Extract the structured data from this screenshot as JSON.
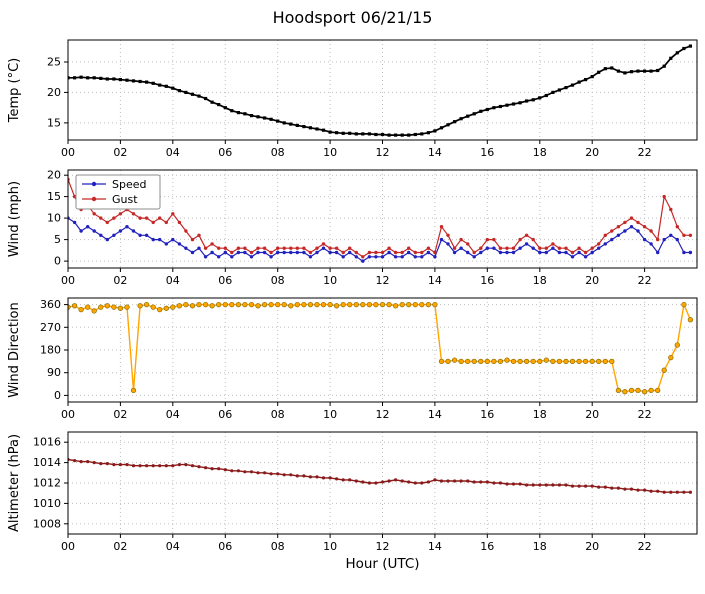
{
  "title": "Hoodsport 06/21/15",
  "xlabel": "Hour (UTC)",
  "chart_data": {
    "type": "line",
    "title": "Hoodsport 06/21/15",
    "x_label": "Hour (UTC)",
    "xlim": [
      0,
      24
    ],
    "x_ticks": {
      "values": [
        0,
        2,
        4,
        6,
        8,
        10,
        12,
        14,
        16,
        18,
        20,
        22
      ],
      "labels": [
        "00",
        "02",
        "04",
        "06",
        "08",
        "10",
        "12",
        "14",
        "16",
        "18",
        "20",
        "22"
      ]
    },
    "x_hours": [
      0,
      0.25,
      0.5,
      0.75,
      1,
      1.25,
      1.5,
      1.75,
      2,
      2.25,
      2.5,
      2.75,
      3,
      3.25,
      3.5,
      3.75,
      4,
      4.25,
      4.5,
      4.75,
      5,
      5.25,
      5.5,
      5.75,
      6,
      6.25,
      6.5,
      6.75,
      7,
      7.25,
      7.5,
      7.75,
      8,
      8.25,
      8.5,
      8.75,
      9,
      9.25,
      9.5,
      9.75,
      10,
      10.25,
      10.5,
      10.75,
      11,
      11.25,
      11.5,
      11.75,
      12,
      12.25,
      12.5,
      12.75,
      13,
      13.25,
      13.5,
      13.75,
      14,
      14.25,
      14.5,
      14.75,
      15,
      15.25,
      15.5,
      15.75,
      16,
      16.25,
      16.5,
      16.75,
      17,
      17.25,
      17.5,
      17.75,
      18,
      18.25,
      18.5,
      18.75,
      19,
      19.25,
      19.5,
      19.75,
      20,
      20.25,
      20.5,
      20.75,
      21,
      21.25,
      21.5,
      21.75,
      22,
      22.25,
      22.5,
      22.75,
      23,
      23.25,
      23.5,
      23.75
    ],
    "panels": [
      {
        "name": "temperature",
        "ylabel": "Temp (°C)",
        "yticks": [
          15,
          20,
          25
        ],
        "ylim": [
          12.2,
          28.6
        ],
        "grid": true,
        "series": [
          {
            "name": "Temp",
            "color": "#000000",
            "marker": "square",
            "marker_size": 1.6,
            "line_width": 1.7,
            "values": [
              22.4,
              22.4,
              22.5,
              22.4,
              22.4,
              22.3,
              22.2,
              22.2,
              22.1,
              22.0,
              21.9,
              21.8,
              21.7,
              21.5,
              21.2,
              21.0,
              20.7,
              20.3,
              20.0,
              19.7,
              19.4,
              19.0,
              18.4,
              18.0,
              17.5,
              17.0,
              16.7,
              16.5,
              16.2,
              16.0,
              15.8,
              15.6,
              15.3,
              15.0,
              14.8,
              14.6,
              14.4,
              14.2,
              14.0,
              13.8,
              13.5,
              13.4,
              13.3,
              13.3,
              13.2,
              13.2,
              13.2,
              13.1,
              13.1,
              13.0,
              13.0,
              13.0,
              13.0,
              13.1,
              13.2,
              13.4,
              13.7,
              14.2,
              14.7,
              15.2,
              15.7,
              16.1,
              16.5,
              16.9,
              17.2,
              17.5,
              17.7,
              17.9,
              18.1,
              18.3,
              18.6,
              18.8,
              19.1,
              19.5,
              20.0,
              20.4,
              20.8,
              21.2,
              21.7,
              22.1,
              22.6,
              23.3,
              23.9,
              24.0,
              23.5,
              23.2,
              23.4,
              23.5,
              23.5,
              23.5,
              23.6,
              24.3,
              25.6,
              26.5,
              27.2,
              27.6
            ]
          }
        ]
      },
      {
        "name": "wind",
        "ylabel": "Wind (mph)",
        "yticks": [
          0,
          5,
          10,
          15,
          20
        ],
        "ylim": [
          -1.6,
          21.2
        ],
        "grid": true,
        "legend": {
          "position": "upper-left",
          "entries": [
            "Speed",
            "Gust"
          ]
        },
        "series": [
          {
            "name": "Speed",
            "color": "#2121bd",
            "marker": "circle",
            "marker_size": 1.7,
            "line_width": 1.2,
            "values": [
              10,
              9,
              7,
              8,
              7,
              6,
              5,
              6,
              7,
              8,
              7,
              6,
              6,
              5,
              5,
              4,
              5,
              4,
              3,
              2,
              3,
              1,
              2,
              1,
              2,
              1,
              2,
              2,
              1,
              2,
              2,
              1,
              2,
              2,
              2,
              2,
              2,
              1,
              2,
              3,
              2,
              2,
              1,
              2,
              1,
              0,
              1,
              1,
              1,
              2,
              1,
              1,
              2,
              1,
              1,
              2,
              1,
              5,
              4,
              2,
              3,
              2,
              1,
              2,
              3,
              3,
              2,
              2,
              2,
              3,
              4,
              3,
              2,
              2,
              3,
              2,
              2,
              1,
              2,
              1,
              2,
              3,
              4,
              5,
              6,
              7,
              8,
              7,
              5,
              4,
              2,
              5,
              6,
              5,
              2,
              2
            ]
          },
          {
            "name": "Gust",
            "color": "#c62828",
            "marker": "circle",
            "marker_size": 1.7,
            "line_width": 1.2,
            "values": [
              19,
              15,
              12,
              13,
              11,
              10,
              9,
              10,
              11,
              12,
              11,
              10,
              10,
              9,
              10,
              9,
              11,
              9,
              7,
              5,
              6,
              3,
              4,
              3,
              3,
              2,
              3,
              3,
              2,
              3,
              3,
              2,
              3,
              3,
              3,
              3,
              3,
              2,
              3,
              4,
              3,
              3,
              2,
              3,
              2,
              1,
              2,
              2,
              2,
              3,
              2,
              2,
              3,
              2,
              2,
              3,
              2,
              8,
              6,
              3,
              5,
              4,
              2,
              3,
              5,
              5,
              3,
              3,
              3,
              5,
              6,
              5,
              3,
              3,
              4,
              3,
              3,
              2,
              3,
              2,
              3,
              4,
              6,
              7,
              8,
              9,
              10,
              9,
              8,
              7,
              5,
              15,
              12,
              8,
              6,
              6
            ]
          }
        ]
      },
      {
        "name": "wind-direction",
        "ylabel": "Wind Direction",
        "yticks": [
          0,
          90,
          180,
          270,
          360
        ],
        "ylim": [
          -26,
          386
        ],
        "grid": true,
        "series": [
          {
            "name": "Direction",
            "color": "#ffa500",
            "marker": "circle",
            "marker_size": 2.3,
            "marker_edge": "#8a6d00",
            "line_width": 1.4,
            "values": [
              350,
              355,
              340,
              350,
              335,
              350,
              355,
              350,
              345,
              350,
              20,
              355,
              360,
              350,
              340,
              345,
              350,
              355,
              360,
              355,
              360,
              360,
              355,
              360,
              360,
              360,
              360,
              360,
              360,
              355,
              360,
              360,
              360,
              360,
              355,
              360,
              360,
              360,
              360,
              360,
              360,
              355,
              360,
              360,
              360,
              360,
              360,
              360,
              360,
              360,
              355,
              360,
              360,
              360,
              360,
              360,
              360,
              135,
              135,
              140,
              135,
              135,
              135,
              135,
              135,
              135,
              135,
              140,
              135,
              135,
              135,
              135,
              135,
              140,
              135,
              135,
              135,
              135,
              135,
              135,
              135,
              135,
              135,
              135,
              20,
              15,
              20,
              20,
              15,
              20,
              20,
              100,
              150,
              200,
              360,
              300
            ]
          }
        ]
      },
      {
        "name": "altimeter",
        "ylabel": "Altimeter (hPa)",
        "yticks": [
          1008,
          1010,
          1012,
          1014,
          1016
        ],
        "ylim": [
          1007,
          1017
        ],
        "grid": true,
        "series": [
          {
            "name": "Altimeter",
            "color": "#8b1a1a",
            "marker": "circle",
            "marker_size": 1.6,
            "line_width": 1.4,
            "values": [
              1014.3,
              1014.2,
              1014.1,
              1014.1,
              1014.0,
              1013.9,
              1013.9,
              1013.8,
              1013.8,
              1013.8,
              1013.7,
              1013.7,
              1013.7,
              1013.7,
              1013.7,
              1013.7,
              1013.7,
              1013.8,
              1013.8,
              1013.7,
              1013.6,
              1013.5,
              1013.4,
              1013.4,
              1013.3,
              1013.2,
              1013.2,
              1013.1,
              1013.1,
              1013.0,
              1013.0,
              1012.9,
              1012.9,
              1012.8,
              1012.8,
              1012.7,
              1012.7,
              1012.6,
              1012.6,
              1012.5,
              1012.5,
              1012.4,
              1012.3,
              1012.3,
              1012.2,
              1012.1,
              1012.0,
              1012.0,
              1012.1,
              1012.2,
              1012.3,
              1012.2,
              1012.1,
              1012.0,
              1012.0,
              1012.1,
              1012.3,
              1012.2,
              1012.2,
              1012.2,
              1012.2,
              1012.2,
              1012.1,
              1012.1,
              1012.1,
              1012.0,
              1012.0,
              1011.9,
              1011.9,
              1011.9,
              1011.8,
              1011.8,
              1011.8,
              1011.8,
              1011.8,
              1011.8,
              1011.8,
              1011.7,
              1011.7,
              1011.7,
              1011.7,
              1011.6,
              1011.6,
              1011.5,
              1011.5,
              1011.4,
              1011.4,
              1011.3,
              1011.3,
              1011.2,
              1011.2,
              1011.1,
              1011.1,
              1011.1,
              1011.1,
              1011.1
            ]
          }
        ]
      }
    ],
    "legend_labels": [
      "Speed",
      "Gust"
    ],
    "grid_color": "#bfbfbf"
  }
}
